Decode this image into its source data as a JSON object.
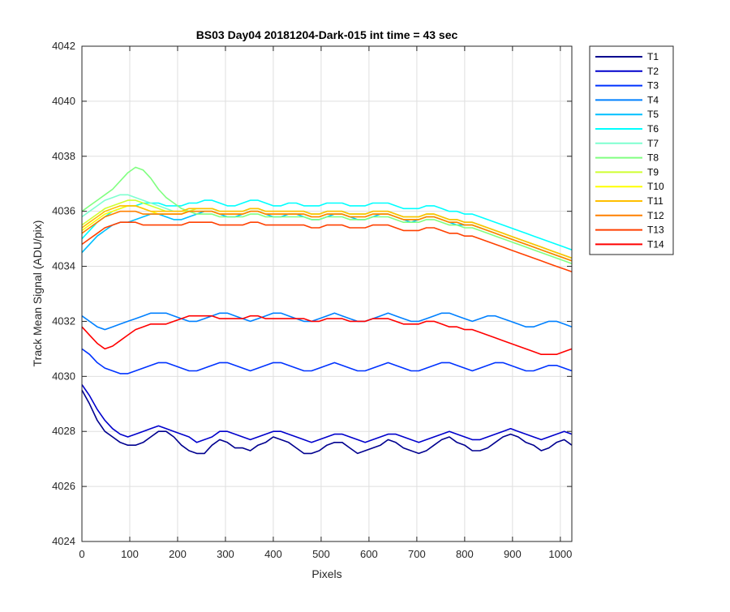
{
  "chart_data": {
    "type": "line",
    "title": "BS03 Day04 20181204-Dark-015 int time = 43 sec",
    "xlabel": "Pixels",
    "ylabel": "Track Mean Signal (ADU/pix)",
    "xlim": [
      0,
      1024
    ],
    "ylim": [
      4024,
      4042
    ],
    "xticks": [
      0,
      100,
      200,
      300,
      400,
      500,
      600,
      700,
      800,
      900,
      1000
    ],
    "yticks": [
      4024,
      4026,
      4028,
      4030,
      4032,
      4034,
      4036,
      4038,
      4040,
      4042
    ],
    "grid": true,
    "legend_position": "outside-top-right",
    "x_sample_step": 16,
    "series": [
      {
        "name": "T1",
        "color": "#00008f",
        "values": [
          4029.5,
          4029.0,
          4028.4,
          4028.0,
          4027.8,
          4027.6,
          4027.5,
          4027.5,
          4027.6,
          4027.8,
          4028.0,
          4028.0,
          4027.8,
          4027.5,
          4027.3,
          4027.2,
          4027.2,
          4027.5,
          4027.7,
          4027.6,
          4027.4,
          4027.4,
          4027.3,
          4027.5,
          4027.6,
          4027.8,
          4027.7,
          4027.6,
          4027.4,
          4027.2,
          4027.2,
          4027.3,
          4027.5,
          4027.6,
          4027.6,
          4027.4,
          4027.2,
          4027.3,
          4027.4,
          4027.5,
          4027.7,
          4027.6,
          4027.4,
          4027.3,
          4027.2,
          4027.3,
          4027.5,
          4027.7,
          4027.8,
          4027.6,
          4027.5,
          4027.3,
          4027.3,
          4027.4,
          4027.6,
          4027.8,
          4027.9,
          4027.8,
          4027.6,
          4027.5,
          4027.3,
          4027.4,
          4027.6,
          4027.7,
          4027.5
        ]
      },
      {
        "name": "T2",
        "color": "#0000cc",
        "values": [
          4029.7,
          4029.3,
          4028.8,
          4028.4,
          4028.1,
          4027.9,
          4027.8,
          4027.9,
          4028.0,
          4028.1,
          4028.2,
          4028.1,
          4028.0,
          4027.9,
          4027.8,
          4027.6,
          4027.7,
          4027.8,
          4028.0,
          4028.0,
          4027.9,
          4027.8,
          4027.7,
          4027.8,
          4027.9,
          4028.0,
          4028.0,
          4027.9,
          4027.8,
          4027.7,
          4027.6,
          4027.7,
          4027.8,
          4027.9,
          4027.9,
          4027.8,
          4027.7,
          4027.6,
          4027.7,
          4027.8,
          4027.9,
          4027.9,
          4027.8,
          4027.7,
          4027.6,
          4027.7,
          4027.8,
          4027.9,
          4028.0,
          4027.9,
          4027.8,
          4027.7,
          4027.7,
          4027.8,
          4027.9,
          4028.0,
          4028.1,
          4028.0,
          4027.9,
          4027.8,
          4027.7,
          4027.8,
          4027.9,
          4028.0,
          4027.9
        ]
      },
      {
        "name": "T3",
        "color": "#0033ff",
        "values": [
          4031.0,
          4030.8,
          4030.5,
          4030.3,
          4030.2,
          4030.1,
          4030.1,
          4030.2,
          4030.3,
          4030.4,
          4030.5,
          4030.5,
          4030.4,
          4030.3,
          4030.2,
          4030.2,
          4030.3,
          4030.4,
          4030.5,
          4030.5,
          4030.4,
          4030.3,
          4030.2,
          4030.3,
          4030.4,
          4030.5,
          4030.5,
          4030.4,
          4030.3,
          4030.2,
          4030.2,
          4030.3,
          4030.4,
          4030.5,
          4030.4,
          4030.3,
          4030.2,
          4030.2,
          4030.3,
          4030.4,
          4030.5,
          4030.4,
          4030.3,
          4030.2,
          4030.2,
          4030.3,
          4030.4,
          4030.5,
          4030.5,
          4030.4,
          4030.3,
          4030.2,
          4030.3,
          4030.4,
          4030.5,
          4030.5,
          4030.4,
          4030.3,
          4030.2,
          4030.2,
          4030.3,
          4030.4,
          4030.4,
          4030.3,
          4030.2
        ]
      },
      {
        "name": "T4",
        "color": "#0080ff",
        "values": [
          4032.2,
          4032.0,
          4031.8,
          4031.7,
          4031.8,
          4031.9,
          4032.0,
          4032.1,
          4032.2,
          4032.3,
          4032.3,
          4032.3,
          4032.2,
          4032.1,
          4032.0,
          4032.0,
          4032.1,
          4032.2,
          4032.3,
          4032.3,
          4032.2,
          4032.1,
          4032.0,
          4032.1,
          4032.2,
          4032.3,
          4032.3,
          4032.2,
          4032.1,
          4032.0,
          4032.0,
          4032.1,
          4032.2,
          4032.3,
          4032.2,
          4032.1,
          4032.0,
          4032.0,
          4032.1,
          4032.2,
          4032.3,
          4032.2,
          4032.1,
          4032.0,
          4032.0,
          4032.1,
          4032.2,
          4032.3,
          4032.3,
          4032.2,
          4032.1,
          4032.0,
          4032.1,
          4032.2,
          4032.2,
          4032.1,
          4032.0,
          4031.9,
          4031.8,
          4031.8,
          4031.9,
          4032.0,
          4032.0,
          4031.9,
          4031.8
        ]
      },
      {
        "name": "T5",
        "color": "#00bfff",
        "values": [
          4034.5,
          4034.8,
          4035.1,
          4035.3,
          4035.5,
          4035.6,
          4035.6,
          4035.7,
          4035.8,
          4035.9,
          4035.9,
          4035.8,
          4035.7,
          4035.7,
          4035.8,
          4035.9,
          4036.0,
          4036.0,
          4035.9,
          4035.8,
          4035.8,
          4035.9,
          4036.0,
          4036.0,
          4035.9,
          4035.8,
          4035.8,
          4035.9,
          4035.9,
          4035.8,
          4035.7,
          4035.7,
          4035.8,
          4035.9,
          4035.9,
          4035.8,
          4035.7,
          4035.7,
          4035.8,
          4035.9,
          4035.9,
          4035.8,
          4035.7,
          4035.6,
          4035.7,
          4035.8,
          4035.8,
          4035.7,
          4035.6,
          4035.5,
          4035.5,
          4035.5,
          4035.4,
          4035.3,
          4035.2,
          4035.1,
          4035.0,
          4034.9,
          4034.8,
          4034.7,
          4034.6,
          4034.5,
          4034.4,
          4034.3,
          4034.2
        ]
      },
      {
        "name": "T6",
        "color": "#00ffff",
        "values": [
          4035.0,
          4035.3,
          4035.6,
          4035.8,
          4036.0,
          4036.1,
          4036.2,
          4036.2,
          4036.3,
          4036.3,
          4036.3,
          4036.2,
          4036.2,
          4036.2,
          4036.3,
          4036.3,
          4036.4,
          4036.4,
          4036.3,
          4036.2,
          4036.2,
          4036.3,
          4036.4,
          4036.4,
          4036.3,
          4036.2,
          4036.2,
          4036.3,
          4036.3,
          4036.2,
          4036.2,
          4036.2,
          4036.3,
          4036.3,
          4036.3,
          4036.2,
          4036.2,
          4036.2,
          4036.3,
          4036.3,
          4036.3,
          4036.2,
          4036.1,
          4036.1,
          4036.1,
          4036.2,
          4036.2,
          4036.1,
          4036.0,
          4036.0,
          4035.9,
          4035.9,
          4035.8,
          4035.7,
          4035.6,
          4035.5,
          4035.4,
          4035.3,
          4035.2,
          4035.1,
          4035.0,
          4034.9,
          4034.8,
          4034.7,
          4034.6
        ]
      },
      {
        "name": "T7",
        "color": "#7fffcf",
        "values": [
          4035.8,
          4036.0,
          4036.2,
          4036.4,
          4036.5,
          4036.6,
          4036.6,
          4036.5,
          4036.4,
          4036.3,
          4036.2,
          4036.1,
          4036.0,
          4036.0,
          4036.0,
          4036.1,
          4036.1,
          4036.1,
          4036.0,
          4036.0,
          4036.0,
          4036.0,
          4036.1,
          4036.1,
          4036.0,
          4036.0,
          4036.0,
          4036.0,
          4036.0,
          4036.0,
          4035.9,
          4035.9,
          4036.0,
          4036.0,
          4036.0,
          4035.9,
          4035.9,
          4035.9,
          4036.0,
          4036.0,
          4036.0,
          4035.9,
          4035.8,
          4035.8,
          4035.8,
          4035.9,
          4035.9,
          4035.8,
          4035.7,
          4035.7,
          4035.6,
          4035.6,
          4035.5,
          4035.4,
          4035.3,
          4035.2,
          4035.1,
          4035.0,
          4034.9,
          4034.8,
          4034.7,
          4034.6,
          4034.5,
          4034.4,
          4034.3
        ]
      },
      {
        "name": "T8",
        "color": "#80ff80",
        "values": [
          4036.0,
          4036.2,
          4036.4,
          4036.6,
          4036.8,
          4037.1,
          4037.4,
          4037.6,
          4037.5,
          4037.2,
          4036.8,
          4036.5,
          4036.3,
          4036.1,
          4036.0,
          4035.9,
          4035.9,
          4035.9,
          4035.8,
          4035.8,
          4035.8,
          4035.8,
          4035.9,
          4035.9,
          4035.8,
          4035.8,
          4035.8,
          4035.8,
          4035.8,
          4035.8,
          4035.7,
          4035.7,
          4035.8,
          4035.8,
          4035.8,
          4035.7,
          4035.7,
          4035.7,
          4035.8,
          4035.8,
          4035.8,
          4035.7,
          4035.6,
          4035.6,
          4035.6,
          4035.7,
          4035.7,
          4035.6,
          4035.5,
          4035.5,
          4035.4,
          4035.4,
          4035.3,
          4035.2,
          4035.1,
          4035.0,
          4034.9,
          4034.8,
          4034.7,
          4034.6,
          4034.5,
          4034.4,
          4034.3,
          4034.2,
          4034.1
        ]
      },
      {
        "name": "T9",
        "color": "#cfff30",
        "values": [
          4035.5,
          4035.7,
          4035.9,
          4036.1,
          4036.2,
          4036.3,
          4036.4,
          4036.4,
          4036.3,
          4036.2,
          4036.1,
          4036.0,
          4036.0,
          4036.0,
          4036.0,
          4036.1,
          4036.1,
          4036.1,
          4036.0,
          4036.0,
          4036.0,
          4036.0,
          4036.1,
          4036.1,
          4036.0,
          4036.0,
          4036.0,
          4036.0,
          4036.0,
          4036.0,
          4035.9,
          4035.9,
          4036.0,
          4036.0,
          4036.0,
          4035.9,
          4035.9,
          4035.9,
          4036.0,
          4036.0,
          4036.0,
          4035.9,
          4035.8,
          4035.8,
          4035.8,
          4035.9,
          4035.9,
          4035.8,
          4035.7,
          4035.7,
          4035.6,
          4035.6,
          4035.5,
          4035.4,
          4035.3,
          4035.2,
          4035.1,
          4035.0,
          4034.9,
          4034.8,
          4034.7,
          4034.6,
          4034.5,
          4034.4,
          4034.3
        ]
      },
      {
        "name": "T10",
        "color": "#ffff00",
        "values": [
          4035.3,
          4035.5,
          4035.7,
          4035.9,
          4036.0,
          4036.1,
          4036.2,
          4036.2,
          4036.1,
          4036.0,
          4035.9,
          4035.9,
          4035.9,
          4035.9,
          4036.0,
          4036.0,
          4036.0,
          4036.0,
          4035.9,
          4035.9,
          4035.9,
          4035.9,
          4036.0,
          4036.0,
          4035.9,
          4035.9,
          4035.9,
          4035.9,
          4035.9,
          4035.9,
          4035.8,
          4035.8,
          4035.9,
          4035.9,
          4035.9,
          4035.8,
          4035.8,
          4035.8,
          4035.9,
          4035.9,
          4035.9,
          4035.8,
          4035.7,
          4035.7,
          4035.7,
          4035.8,
          4035.8,
          4035.7,
          4035.6,
          4035.6,
          4035.5,
          4035.5,
          4035.4,
          4035.3,
          4035.2,
          4035.1,
          4035.0,
          4034.9,
          4034.8,
          4034.7,
          4034.6,
          4034.5,
          4034.4,
          4034.3,
          4034.2
        ]
      },
      {
        "name": "T11",
        "color": "#ffbf00",
        "values": [
          4035.4,
          4035.6,
          4035.8,
          4036.0,
          4036.1,
          4036.2,
          4036.2,
          4036.2,
          4036.1,
          4036.0,
          4036.0,
          4036.0,
          4036.0,
          4036.0,
          4036.1,
          4036.1,
          4036.1,
          4036.1,
          4036.0,
          4036.0,
          4036.0,
          4036.0,
          4036.1,
          4036.1,
          4036.0,
          4036.0,
          4036.0,
          4036.0,
          4036.0,
          4036.0,
          4035.9,
          4035.9,
          4036.0,
          4036.0,
          4036.0,
          4035.9,
          4035.9,
          4035.9,
          4036.0,
          4036.0,
          4036.0,
          4035.9,
          4035.8,
          4035.8,
          4035.8,
          4035.9,
          4035.9,
          4035.8,
          4035.7,
          4035.7,
          4035.6,
          4035.6,
          4035.5,
          4035.4,
          4035.3,
          4035.2,
          4035.1,
          4035.0,
          4034.9,
          4034.8,
          4034.7,
          4034.6,
          4034.5,
          4034.4,
          4034.3
        ]
      },
      {
        "name": "T12",
        "color": "#ff8000",
        "values": [
          4035.2,
          4035.4,
          4035.6,
          4035.8,
          4035.9,
          4036.0,
          4036.0,
          4036.0,
          4035.9,
          4035.9,
          4035.9,
          4035.9,
          4035.9,
          4035.9,
          4036.0,
          4036.0,
          4036.0,
          4036.0,
          4035.9,
          4035.9,
          4035.9,
          4035.9,
          4036.0,
          4036.0,
          4035.9,
          4035.9,
          4035.9,
          4035.9,
          4035.9,
          4035.9,
          4035.8,
          4035.8,
          4035.9,
          4035.9,
          4035.9,
          4035.8,
          4035.8,
          4035.8,
          4035.9,
          4035.9,
          4035.9,
          4035.8,
          4035.7,
          4035.7,
          4035.7,
          4035.8,
          4035.8,
          4035.7,
          4035.6,
          4035.6,
          4035.5,
          4035.5,
          4035.4,
          4035.3,
          4035.2,
          4035.1,
          4035.0,
          4034.9,
          4034.8,
          4034.7,
          4034.6,
          4034.5,
          4034.4,
          4034.3,
          4034.2
        ]
      },
      {
        "name": "T13",
        "color": "#ff4000",
        "values": [
          4034.8,
          4035.0,
          4035.2,
          4035.4,
          4035.5,
          4035.6,
          4035.6,
          4035.6,
          4035.5,
          4035.5,
          4035.5,
          4035.5,
          4035.5,
          4035.5,
          4035.6,
          4035.6,
          4035.6,
          4035.6,
          4035.5,
          4035.5,
          4035.5,
          4035.5,
          4035.6,
          4035.6,
          4035.5,
          4035.5,
          4035.5,
          4035.5,
          4035.5,
          4035.5,
          4035.4,
          4035.4,
          4035.5,
          4035.5,
          4035.5,
          4035.4,
          4035.4,
          4035.4,
          4035.5,
          4035.5,
          4035.5,
          4035.4,
          4035.3,
          4035.3,
          4035.3,
          4035.4,
          4035.4,
          4035.3,
          4035.2,
          4035.2,
          4035.1,
          4035.1,
          4035.0,
          4034.9,
          4034.8,
          4034.7,
          4034.6,
          4034.5,
          4034.4,
          4034.3,
          4034.2,
          4034.1,
          4034.0,
          4033.9,
          4033.8
        ]
      },
      {
        "name": "T14",
        "color": "#ff0000",
        "values": [
          4031.8,
          4031.5,
          4031.2,
          4031.0,
          4031.1,
          4031.3,
          4031.5,
          4031.7,
          4031.8,
          4031.9,
          4031.9,
          4031.9,
          4032.0,
          4032.1,
          4032.2,
          4032.2,
          4032.2,
          4032.2,
          4032.1,
          4032.1,
          4032.1,
          4032.1,
          4032.2,
          4032.2,
          4032.1,
          4032.1,
          4032.1,
          4032.1,
          4032.1,
          4032.1,
          4032.0,
          4032.0,
          4032.1,
          4032.1,
          4032.1,
          4032.0,
          4032.0,
          4032.0,
          4032.1,
          4032.1,
          4032.1,
          4032.0,
          4031.9,
          4031.9,
          4031.9,
          4032.0,
          4032.0,
          4031.9,
          4031.8,
          4031.8,
          4031.7,
          4031.7,
          4031.6,
          4031.5,
          4031.4,
          4031.3,
          4031.2,
          4031.1,
          4031.0,
          4030.9,
          4030.8,
          4030.8,
          4030.8,
          4030.9,
          4031.0
        ]
      }
    ]
  }
}
